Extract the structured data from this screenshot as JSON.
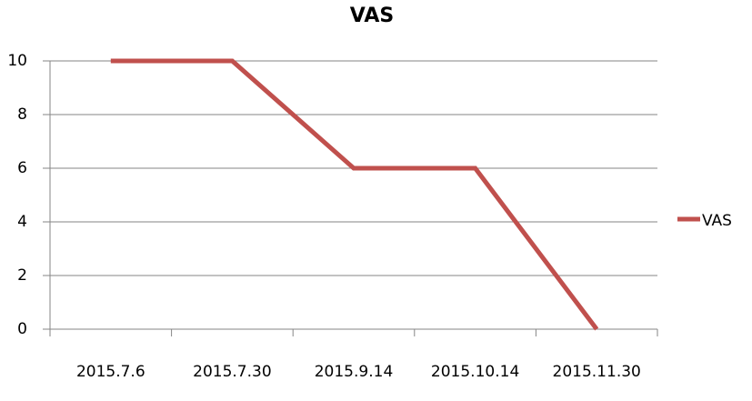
{
  "chart_data": {
    "type": "line",
    "title": "VAS",
    "categories": [
      "2015.7.6",
      "2015.7.30",
      "2015.9.14",
      "2015.10.14",
      "2015.11.30"
    ],
    "series": [
      {
        "name": "VAS",
        "color": "#c0504d",
        "values": [
          10,
          10,
          6,
          6,
          0
        ]
      }
    ],
    "ylim": [
      0,
      10
    ],
    "yticks": [
      0,
      2,
      4,
      6,
      8,
      10
    ],
    "grid": true,
    "legend": "right"
  }
}
